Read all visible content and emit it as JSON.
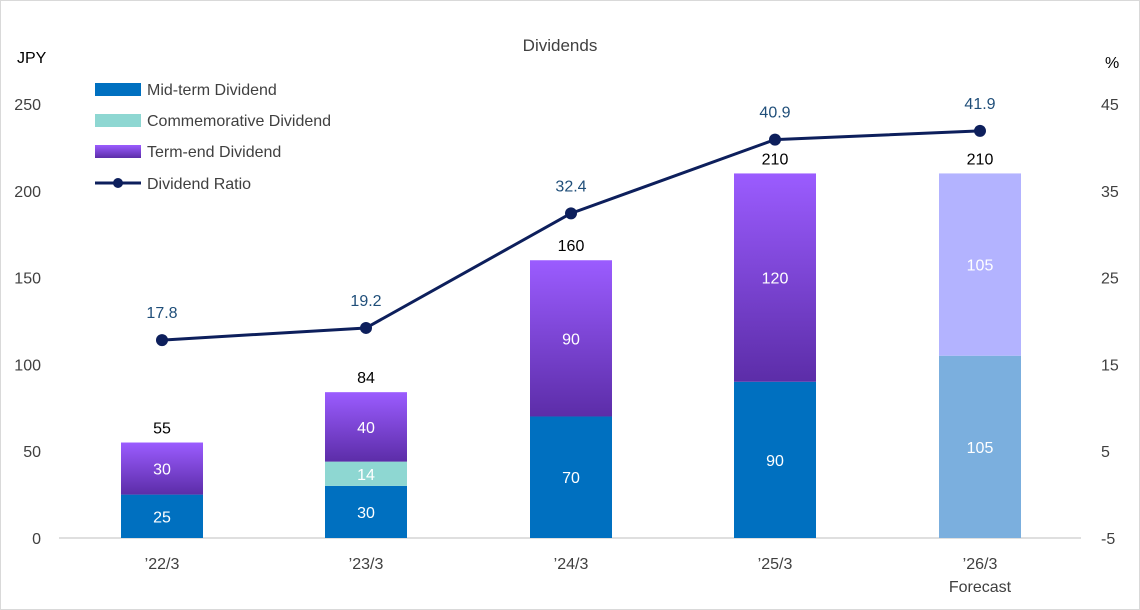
{
  "chart_data": {
    "type": "bar",
    "title": "Dividends",
    "ylabel_left": "JPY",
    "ylabel_right": "%",
    "categories": [
      "’22/3",
      "’23/3",
      "’24/3",
      "’25/3",
      "’26/3"
    ],
    "category_sublabels": [
      "",
      "",
      "",
      "",
      "Forecast"
    ],
    "ylim_left": [
      0,
      250
    ],
    "yticks_left": [
      0,
      50,
      100,
      150,
      200,
      250
    ],
    "ylim_right": [
      -5,
      45
    ],
    "yticks_right": [
      -5,
      5,
      15,
      25,
      35,
      45
    ],
    "grid": false,
    "legend_position": "top-left",
    "series": [
      {
        "name": "Mid-term Dividend",
        "kind": "bar",
        "color": "#0070C0",
        "forecast_color": "#7BAFDE",
        "values": [
          25,
          30,
          70,
          90,
          105
        ],
        "labels": [
          "25",
          "30",
          "70",
          "90",
          "105"
        ]
      },
      {
        "name": "Commemorative Dividend",
        "kind": "bar",
        "color": "#8ED7D2",
        "values": [
          0,
          14,
          0,
          0,
          0
        ],
        "labels": [
          "",
          "14",
          "",
          "",
          ""
        ]
      },
      {
        "name": "Term-end Dividend",
        "kind": "bar",
        "color_top": "#9B5CFF",
        "color_bottom": "#5C2DA8",
        "forecast_color": "#B3B3FF",
        "values": [
          30,
          40,
          90,
          120,
          105
        ],
        "labels": [
          "30",
          "40",
          "90",
          "120",
          "105"
        ]
      },
      {
        "name": "Dividend Ratio",
        "kind": "line",
        "axis": "right",
        "color": "#0D1F5C",
        "values": [
          17.8,
          19.2,
          32.4,
          40.9,
          41.9
        ],
        "labels": [
          "17.8",
          "19.2",
          "32.4",
          "40.9",
          "41.9"
        ]
      }
    ],
    "totals": [
      55,
      84,
      160,
      210,
      210
    ],
    "total_labels": [
      "55",
      "84",
      "160",
      "210",
      "210"
    ],
    "forecast_index": 4,
    "label_colors": {
      "inner": "#ffffff",
      "total": "#000000",
      "ratio": "#1F4E79",
      "axis": "#404040"
    }
  }
}
